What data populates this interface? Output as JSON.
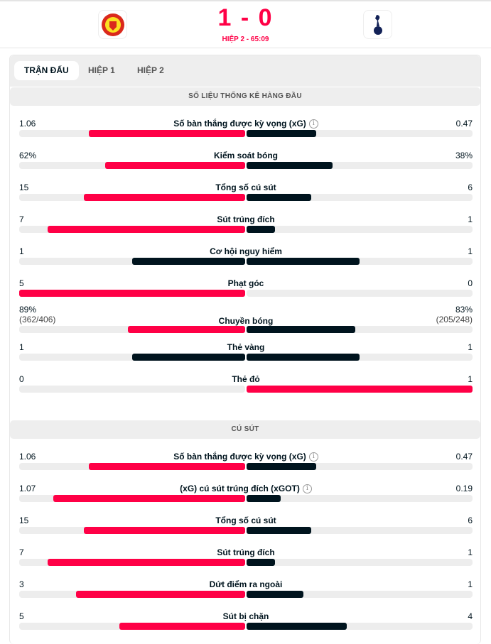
{
  "header": {
    "score": "1 - 0",
    "period": "HIỆP 2 - 65:09",
    "home_logo": "manchester-united-crest",
    "away_logo": "tottenham-hotspur-crest"
  },
  "tabs": [
    {
      "label": "TRẬN ĐẤU",
      "active": true
    },
    {
      "label": "HIỆP 1"
    },
    {
      "label": "HIỆP 2"
    }
  ],
  "colors": {
    "leading": "#ff0046",
    "trailing": "#00141e",
    "track": "#ededed"
  },
  "sections": [
    {
      "title": "SỐ LIỆU THỐNG KÊ HÀNG ĐẦU",
      "stats": [
        {
          "name": "Số bàn thắng được kỳ vọng (xG)",
          "info": true,
          "home": "1.06",
          "away": "0.47",
          "hv": 1.06,
          "av": 0.47
        },
        {
          "name": "Kiểm soát bóng",
          "home": "62%",
          "away": "38%",
          "hv": 62,
          "av": 38
        },
        {
          "name": "Tổng số cú sút",
          "home": "15",
          "away": "6",
          "hv": 15,
          "av": 6
        },
        {
          "name": "Sút trúng đích",
          "home": "7",
          "away": "1",
          "hv": 7,
          "av": 1
        },
        {
          "name": "Cơ hội nguy hiểm",
          "home": "1",
          "away": "1",
          "hv": 1,
          "av": 1
        },
        {
          "name": "Phạt góc",
          "home": "5",
          "away": "0",
          "hv": 5,
          "av": 0
        },
        {
          "name": "Chuyền bóng",
          "home": "89%",
          "away": "83%",
          "home_sub": "(362/406)",
          "away_sub": "(205/248)",
          "hv": 89,
          "av": 83
        },
        {
          "name": "Thẻ vàng",
          "home": "1",
          "away": "1",
          "hv": 1,
          "av": 1
        },
        {
          "name": "Thẻ đỏ",
          "home": "0",
          "away": "1",
          "hv": 0,
          "av": 1
        }
      ]
    },
    {
      "title": "CÚ SÚT",
      "stats": [
        {
          "name": "Số bàn thắng được kỳ vọng (xG)",
          "info": true,
          "home": "1.06",
          "away": "0.47",
          "hv": 1.06,
          "av": 0.47
        },
        {
          "name": "(xG) cú sút trúng đích (xGOT)",
          "info": true,
          "home": "1.07",
          "away": "0.19",
          "hv": 1.07,
          "av": 0.19
        },
        {
          "name": "Tổng số cú sút",
          "home": "15",
          "away": "6",
          "hv": 15,
          "av": 6
        },
        {
          "name": "Sút trúng đích",
          "home": "7",
          "away": "1",
          "hv": 7,
          "av": 1
        },
        {
          "name": "Dứt điểm ra ngoài",
          "home": "3",
          "away": "1",
          "hv": 3,
          "av": 1
        },
        {
          "name": "Sút bị chặn",
          "home": "5",
          "away": "4",
          "hv": 5,
          "av": 4
        }
      ]
    }
  ]
}
